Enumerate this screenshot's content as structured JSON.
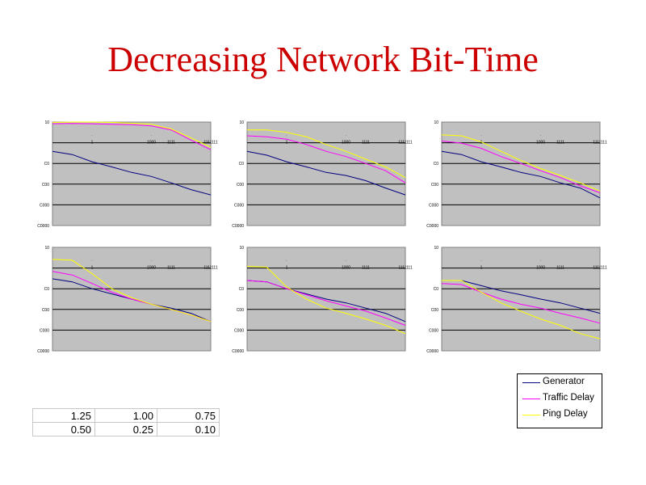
{
  "title": "Decreasing Network Bit-Time",
  "legend": [
    {
      "name": "Generator",
      "color": "#000080"
    },
    {
      "name": "Traffic Delay",
      "color": "#ff00ff"
    },
    {
      "name": "Ping Delay",
      "color": "#ffff00"
    }
  ],
  "params_table": [
    [
      "1.25",
      "1.00",
      "0.75"
    ],
    [
      "0.50",
      "0.25",
      "0.10"
    ]
  ],
  "chart_data": [
    {
      "type": "line",
      "xscale": "log",
      "yscale": "log",
      "xlim": [
        0.01,
        1000000
      ],
      "ylim": [
        1e-05,
        10
      ],
      "x_ticks": [
        "1",
        "1000",
        "1111",
        "1111111"
      ],
      "y_ticks": [
        "10",
        "",
        "C0",
        "C00",
        "C000",
        "C0000"
      ],
      "grid": true,
      "plot_background": "#c0c0c0",
      "series": [
        {
          "name": "Generator",
          "x": [
            0.01,
            0.1,
            1,
            10,
            100,
            1000,
            10000,
            100000,
            1000000
          ],
          "y": [
            0.2,
            0.13,
            0.05,
            0.025,
            0.012,
            0.007,
            0.003,
            0.0012,
            0.0006
          ]
        },
        {
          "name": "Traffic Delay",
          "x": [
            0.01,
            0.1,
            1,
            10,
            100,
            1000,
            10000,
            100000,
            1000000
          ],
          "y": [
            8,
            8.2,
            8,
            7.5,
            7,
            6,
            3.5,
            0.9,
            0.25
          ]
        },
        {
          "name": "Ping Delay",
          "x": [
            0.01,
            0.1,
            1,
            10,
            100,
            1000,
            10000,
            100000,
            1000000
          ],
          "y": [
            9.5,
            10,
            10,
            9.6,
            8.5,
            7.5,
            4,
            1.2,
            0.35
          ]
        }
      ]
    },
    {
      "type": "line",
      "xscale": "log",
      "yscale": "log",
      "xlim": [
        0.01,
        1000000
      ],
      "ylim": [
        1e-05,
        10
      ],
      "x_ticks": [
        "1",
        "1000",
        "1111",
        "1111111"
      ],
      "y_ticks": [
        "10",
        "",
        "C0",
        "C00",
        "C000",
        "C0000"
      ],
      "grid": true,
      "plot_background": "#c0c0c0",
      "series": [
        {
          "name": "Generator",
          "x": [
            0.01,
            0.1,
            1,
            10,
            100,
            1000,
            10000,
            100000,
            1000000
          ],
          "y": [
            0.2,
            0.12,
            0.05,
            0.025,
            0.012,
            0.008,
            0.004,
            0.0015,
            0.0006
          ]
        },
        {
          "name": "Traffic Delay",
          "x": [
            0.01,
            0.1,
            1,
            10,
            100,
            1000,
            10000,
            100000,
            1000000
          ],
          "y": [
            1.6,
            1.4,
            1,
            0.5,
            0.2,
            0.1,
            0.04,
            0.015,
            0.003
          ]
        },
        {
          "name": "Ping Delay",
          "x": [
            0.01,
            0.1,
            1,
            10,
            100,
            1000,
            10000,
            100000,
            1000000
          ],
          "y": [
            3.5,
            3.5,
            2.5,
            1.4,
            0.5,
            0.2,
            0.07,
            0.025,
            0.006
          ]
        }
      ]
    },
    {
      "type": "line",
      "xscale": "log",
      "yscale": "log",
      "xlim": [
        0.01,
        1000000
      ],
      "ylim": [
        1e-05,
        10
      ],
      "x_ticks": [
        "1",
        "1000",
        "1111",
        "1111111"
      ],
      "y_ticks": [
        "10",
        "",
        "C0",
        "C00",
        "C000",
        "C0000"
      ],
      "grid": true,
      "plot_background": "#c0c0c0",
      "series": [
        {
          "name": "Generator",
          "x": [
            0.01,
            0.1,
            1,
            10,
            100,
            1000,
            10000,
            100000,
            1000000
          ],
          "y": [
            0.2,
            0.13,
            0.05,
            0.025,
            0.012,
            0.007,
            0.003,
            0.0015,
            0.0004
          ]
        },
        {
          "name": "Traffic Delay",
          "x": [
            0.01,
            0.1,
            1,
            10,
            100,
            1000,
            10000,
            100000,
            1000000
          ],
          "y": [
            0.8,
            0.6,
            0.3,
            0.1,
            0.04,
            0.015,
            0.006,
            0.002,
            0.0008
          ]
        },
        {
          "name": "Ping Delay",
          "x": [
            0.01,
            0.1,
            1,
            10,
            100,
            1000,
            10000,
            100000,
            1000000
          ],
          "y": [
            1.8,
            1.6,
            0.7,
            0.2,
            0.06,
            0.02,
            0.008,
            0.003,
            0.001
          ]
        }
      ]
    },
    {
      "type": "line",
      "xscale": "log",
      "yscale": "log",
      "xlim": [
        0.01,
        1000000
      ],
      "ylim": [
        1e-05,
        10
      ],
      "x_ticks": [
        "1",
        "1000",
        "1111",
        "1111111"
      ],
      "y_ticks": [
        "10",
        "",
        "C0",
        "C00",
        "C000",
        "C0000"
      ],
      "grid": true,
      "plot_background": "#c0c0c0",
      "series": [
        {
          "name": "Generator",
          "x": [
            0.01,
            0.1,
            1,
            10,
            100,
            1000,
            10000,
            100000,
            1000000
          ],
          "y": [
            0.15,
            0.1,
            0.04,
            0.02,
            0.01,
            0.005,
            0.003,
            0.0015,
            0.0005
          ]
        },
        {
          "name": "Traffic Delay",
          "x": [
            0.01,
            0.1,
            1,
            10,
            100,
            1000,
            10000,
            100000,
            1000000
          ],
          "y": [
            0.4,
            0.25,
            0.08,
            0.025,
            0.01,
            0.005,
            0.0025,
            0.0012,
            0.0005
          ]
        },
        {
          "name": "Ping Delay",
          "x": [
            0.01,
            0.1,
            1,
            10,
            100,
            1000,
            10000,
            100000,
            1000000
          ],
          "y": [
            2,
            1.8,
            0.3,
            0.04,
            0.012,
            0.005,
            0.0025,
            0.0012,
            0.0005
          ]
        }
      ]
    },
    {
      "type": "line",
      "xscale": "log",
      "yscale": "log",
      "xlim": [
        0.01,
        1000000
      ],
      "ylim": [
        1e-05,
        10
      ],
      "x_ticks": [
        "1",
        "1000",
        "1111",
        "1111111"
      ],
      "y_ticks": [
        "10",
        "",
        "C0",
        "C00",
        "C000",
        "C0000"
      ],
      "grid": true,
      "plot_background": "#c0c0c0",
      "series": [
        {
          "name": "Generator",
          "x": [
            0.01,
            0.1,
            1,
            10,
            100,
            1000,
            10000,
            100000,
            1000000
          ],
          "y": [
            0.12,
            0.1,
            0.04,
            0.02,
            0.01,
            0.006,
            0.003,
            0.0015,
            0.0005
          ]
        },
        {
          "name": "Traffic Delay",
          "x": [
            0.01,
            0.1,
            1,
            10,
            100,
            1000,
            10000,
            100000,
            1000000
          ],
          "y": [
            0.12,
            0.1,
            0.04,
            0.018,
            0.008,
            0.004,
            0.002,
            0.0008,
            0.0003
          ]
        },
        {
          "name": "Ping Delay",
          "x": [
            0.01,
            0.1,
            1,
            10,
            100,
            1000,
            10000,
            100000,
            1000000
          ],
          "y": [
            0.8,
            0.7,
            0.05,
            0.01,
            0.003,
            0.0015,
            0.0007,
            0.0003,
            0.0001
          ]
        }
      ]
    },
    {
      "type": "line",
      "xscale": "log",
      "yscale": "log",
      "xlim": [
        0.01,
        1000000
      ],
      "ylim": [
        1e-05,
        10
      ],
      "x_ticks": [
        "1",
        "1000",
        "1111",
        "1111111"
      ],
      "y_ticks": [
        "10",
        "",
        "C0",
        "C00",
        "C000",
        "C0000"
      ],
      "grid": true,
      "plot_background": "#c0c0c0",
      "series": [
        {
          "name": "Generator",
          "x": [
            0.01,
            0.1,
            1,
            10,
            100,
            1000,
            10000,
            100000,
            1000000
          ],
          "y": [
            0.12,
            0.12,
            0.06,
            0.03,
            0.018,
            0.01,
            0.006,
            0.003,
            0.0015
          ]
        },
        {
          "name": "Traffic Delay",
          "x": [
            0.01,
            0.1,
            1,
            10,
            100,
            1000,
            10000,
            100000,
            1000000
          ],
          "y": [
            0.08,
            0.07,
            0.025,
            0.01,
            0.005,
            0.003,
            0.0015,
            0.0008,
            0.0004
          ]
        },
        {
          "name": "Ping Delay",
          "x": [
            0.01,
            0.1,
            1,
            10,
            100,
            1000,
            10000,
            100000,
            1000000
          ],
          "y": [
            0.12,
            0.12,
            0.025,
            0.006,
            0.002,
            0.0007,
            0.0003,
            0.0001,
            5e-05
          ]
        }
      ]
    }
  ]
}
